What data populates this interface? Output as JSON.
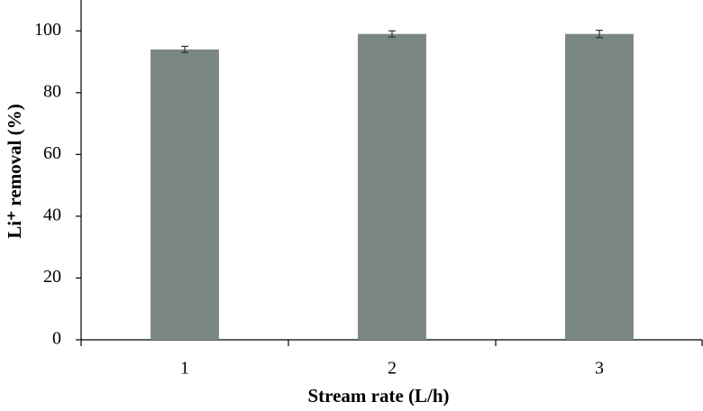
{
  "chart_data": {
    "type": "bar",
    "x_label": "Stream rate (L/h)",
    "y_label": "Li⁺ removal (%)",
    "categories": [
      "1",
      "2",
      "3"
    ],
    "values": [
      94.0,
      99.0,
      99.0
    ],
    "errors": [
      1.0,
      1.0,
      1.2
    ],
    "color": "#7a8785",
    "ylim": [
      0,
      110
    ],
    "yticks": [
      0,
      20,
      40,
      60,
      80,
      100
    ],
    "grid": false
  }
}
